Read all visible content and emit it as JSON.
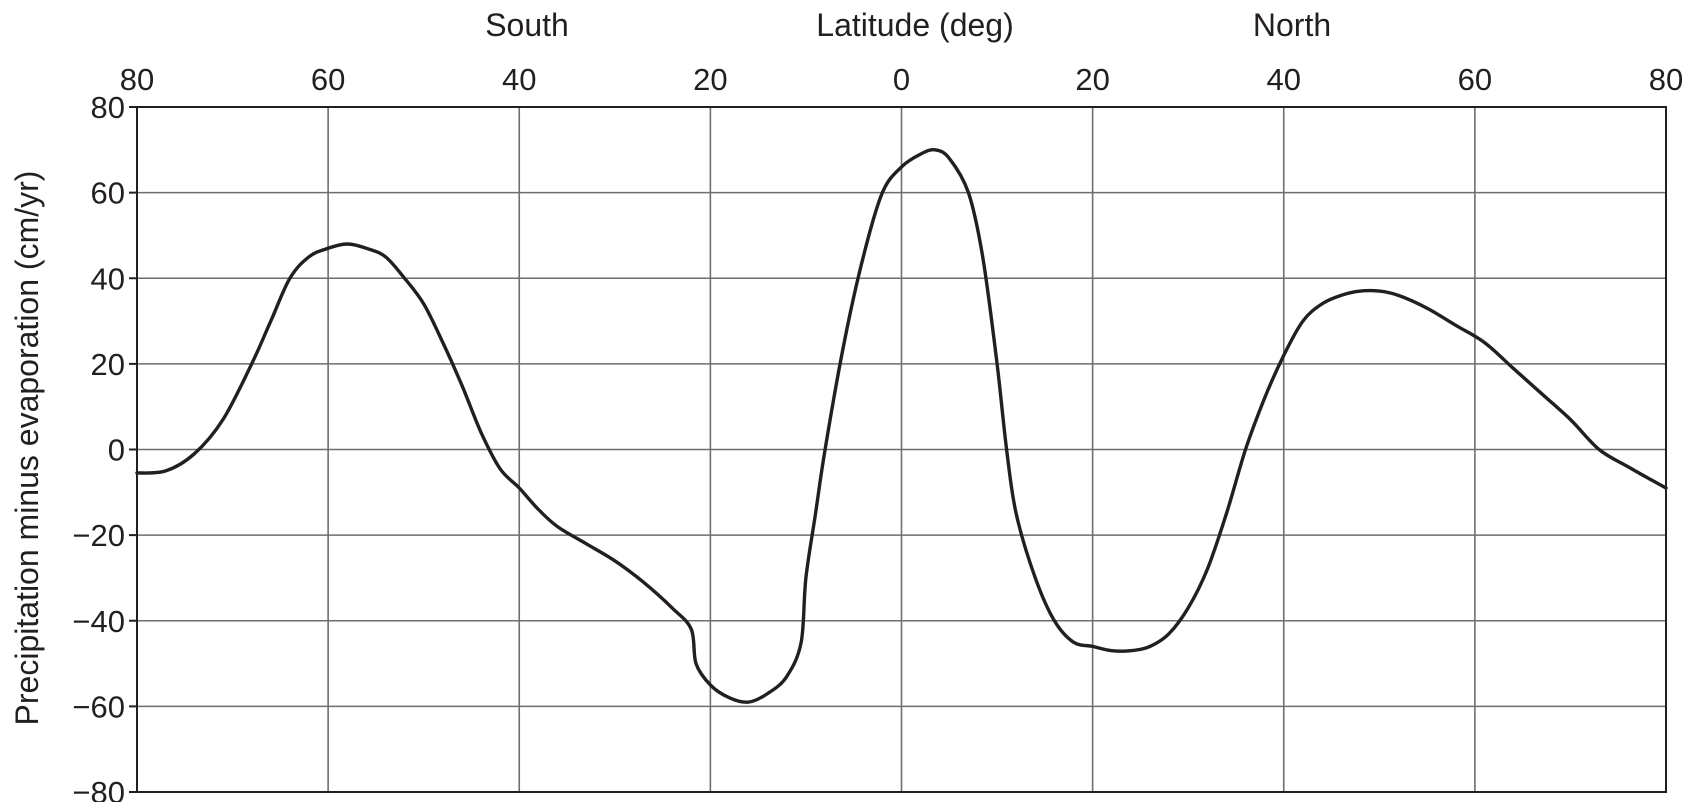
{
  "chart_data": {
    "type": "line",
    "header": {
      "south_label": "South",
      "axis_title": "Latitude (deg)",
      "north_label": "North"
    },
    "xlabel": "Latitude (deg)",
    "ylabel": "Precipitation minus evaporation (cm/yr)",
    "xlim": [
      -80,
      80
    ],
    "ylim": [
      -80,
      80
    ],
    "x_ticks": [
      -80,
      -60,
      -40,
      -20,
      0,
      20,
      40,
      60,
      80
    ],
    "x_tick_labels": [
      "80",
      "60",
      "40",
      "20",
      "0",
      "20",
      "40",
      "60",
      "80"
    ],
    "y_ticks": [
      80,
      60,
      40,
      20,
      0,
      -20,
      -40,
      -60,
      -80
    ],
    "y_tick_labels": [
      "80",
      "60",
      "40",
      "20",
      "0",
      "−20",
      "−40",
      "−60",
      "−80"
    ],
    "grid": true,
    "line_color": "#231f20",
    "grid_color": "#6d6e71",
    "series": [
      {
        "x": [
          -80,
          -77,
          -74,
          -71,
          -68,
          -66,
          -64,
          -62,
          -60,
          -58,
          -56,
          -54,
          -52,
          -50,
          -48,
          -46,
          -44,
          -42,
          -40,
          -38,
          -36,
          -33,
          -30,
          -27,
          -24,
          -22,
          -21.5,
          -20,
          -18,
          -16,
          -14,
          -12,
          -10.5,
          -10,
          -9,
          -8,
          -6,
          -4,
          -2,
          0,
          2,
          3.5,
          5,
          7,
          8.5,
          10,
          11,
          12,
          14,
          16,
          18,
          20,
          22,
          24,
          26,
          28,
          30,
          32,
          34,
          36,
          38,
          40,
          42,
          44,
          46,
          48,
          50,
          52,
          55,
          58,
          61,
          64,
          67,
          70,
          73,
          76,
          80
        ],
        "y": [
          -5.5,
          -5,
          -1,
          7,
          20,
          30,
          40,
          45,
          47,
          48,
          47,
          45,
          40,
          34,
          25,
          15,
          4,
          -4.5,
          -9,
          -14,
          -18,
          -22,
          -26,
          -31,
          -37,
          -42,
          -50,
          -55,
          -58,
          -59,
          -57,
          -53,
          -45,
          -30,
          -15,
          0,
          25,
          45,
          60,
          66,
          69,
          70,
          68,
          60,
          45,
          20,
          0,
          -15,
          -30,
          -40,
          -45,
          -46,
          -47,
          -47,
          -46,
          -43,
          -37,
          -28,
          -15,
          0,
          12,
          22,
          30,
          34,
          36,
          37,
          37,
          36,
          33,
          29,
          25,
          19,
          13,
          7,
          0,
          -4,
          -9
        ]
      }
    ]
  }
}
